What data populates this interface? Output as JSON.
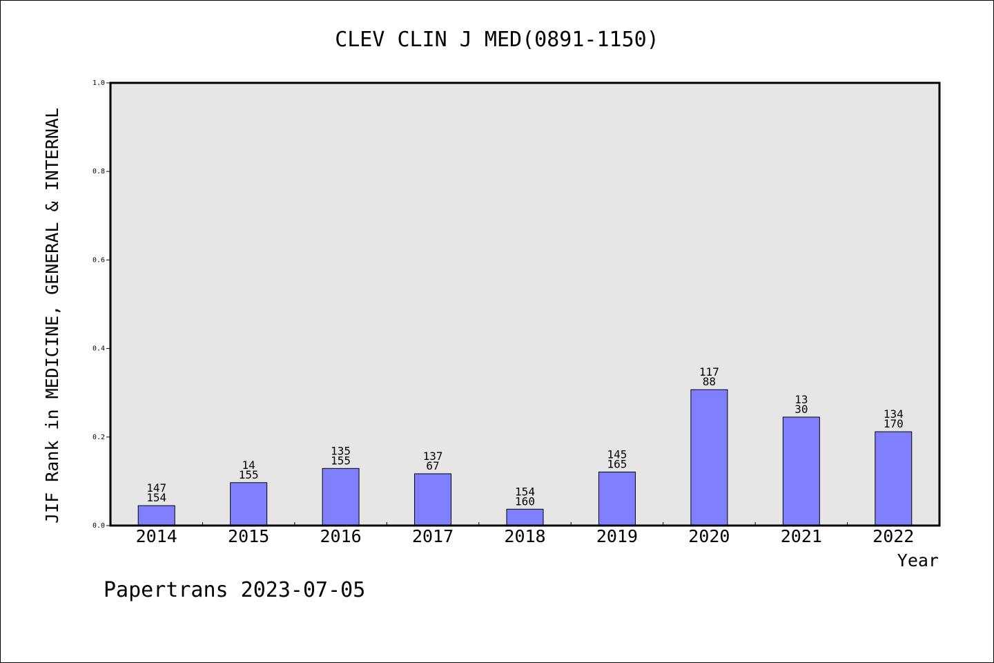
{
  "chart_data": {
    "type": "bar",
    "title": "CLEV CLIN J MED(0891-1150)",
    "xlabel": "Year",
    "ylabel": "JIF Rank in MEDICINE, GENERAL & INTERNAL",
    "ylim": [
      0,
      1.0
    ],
    "yticks": [
      "0.0",
      "0.2",
      "0.4",
      "0.6",
      "0.8",
      "1.0"
    ],
    "grid": false,
    "categories": [
      "2014",
      "2015",
      "2016",
      "2017",
      "2018",
      "2019",
      "2020",
      "2021",
      "2022"
    ],
    "values": [
      0.045,
      0.097,
      0.129,
      0.117,
      0.037,
      0.121,
      0.307,
      0.245,
      0.212
    ],
    "labels_top": [
      "147",
      "14",
      "135",
      "137",
      "154",
      "145",
      "117",
      "13",
      "134"
    ],
    "labels_bottom": [
      "154",
      "155",
      "155",
      "67",
      "160",
      "165",
      "88",
      "30",
      "170"
    ],
    "bar_color": "#8080ff",
    "plot_background": "#e6e6e6"
  },
  "footer": "Papertrans 2023-07-05"
}
